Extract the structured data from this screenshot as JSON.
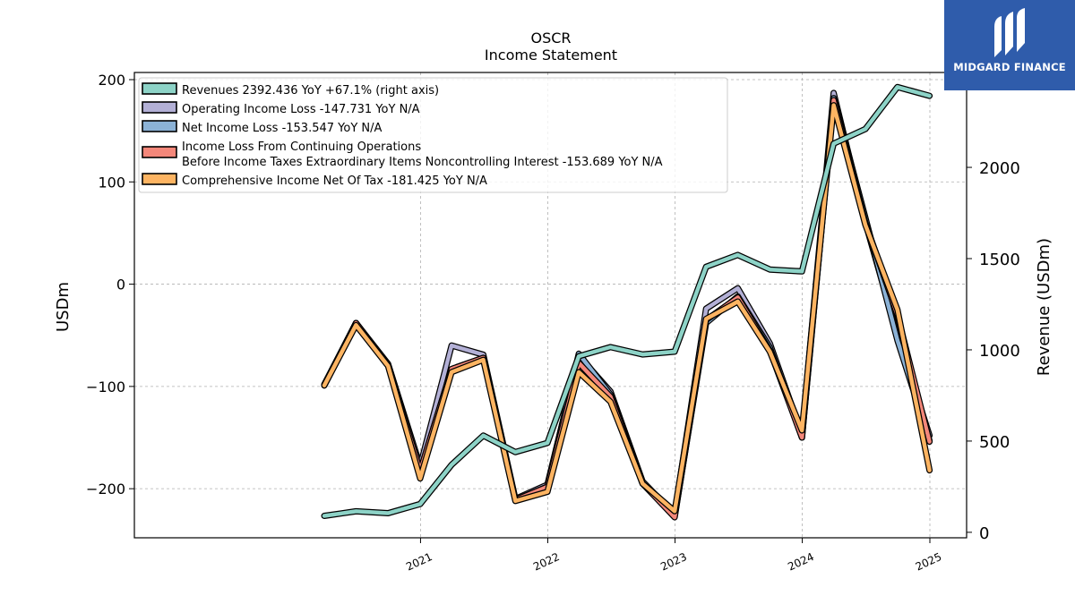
{
  "branding": {
    "name": "MIDGARD FINANCE",
    "logo_icon": "midgard-m-logo-icon",
    "background": "#2f5cab"
  },
  "chart_data": {
    "type": "line",
    "title": "OSCR",
    "subtitle": "Income Statement",
    "ylabel": "USDm",
    "y2label": "Revenue (USDm)",
    "ylim": [
      -248,
      207
    ],
    "y2lim": [
      -30,
      2520
    ],
    "yticks": [
      200,
      100,
      0,
      -100,
      -200
    ],
    "y2ticks": [
      2000,
      1500,
      1000,
      500,
      0
    ],
    "xticks": [
      "2021",
      "2022",
      "2023",
      "2024",
      "2025"
    ],
    "grid": true,
    "legend_placement": "top-left",
    "x": [
      "2020-03-31",
      "2020-06-30",
      "2020-09-30",
      "2020-12-31",
      "2021-03-31",
      "2021-06-30",
      "2021-09-30",
      "2021-12-31",
      "2022-03-31",
      "2022-06-30",
      "2022-09-30",
      "2022-12-31",
      "2023-03-31",
      "2023-06-30",
      "2023-09-30",
      "2023-12-31",
      "2024-03-31",
      "2024-06-30",
      "2024-09-30",
      "2024-12-31"
    ],
    "series": [
      {
        "name": "Operating Income Loss",
        "legend": "Operating Income Loss  -147.731 YoY N/A",
        "color": "#b3b0d6",
        "axis": "left",
        "values": [
          -98,
          -38,
          -78,
          -178,
          -60,
          -69,
          -210,
          -196,
          -70,
          -105,
          -193,
          -225,
          -24,
          -4,
          -58,
          -147,
          187,
          60,
          -50,
          -148
        ]
      },
      {
        "name": "Net Income Loss",
        "legend": "Net Income Loss  -153.547 YoY N/A",
        "color": "#8bb2d6",
        "axis": "left",
        "values": [
          -99,
          -38,
          -79,
          -183,
          -83,
          -72,
          -211,
          -198,
          -68,
          -108,
          -195,
          -227,
          -38,
          -12,
          -62,
          -150,
          182,
          65,
          -55,
          -153
        ]
      },
      {
        "name": "Income Loss From Continuing Operations Before Income Taxes Extraordinary Items Noncontrolling Interest",
        "legend_line1": "Income Loss From Continuing Operations",
        "legend_line2": "Before Income Taxes Extraordinary Items Noncontrolling Interest  -153.689 YoY N/A",
        "color": "#f4877a",
        "axis": "left",
        "values": [
          -99,
          -38,
          -79,
          -183,
          -83,
          -72,
          -211,
          -198,
          -77,
          -110,
          -195,
          -228,
          -35,
          -13,
          -65,
          -150,
          180,
          60,
          -30,
          -154
        ]
      },
      {
        "name": "Comprehensive Income Net Of Tax",
        "legend": "Comprehensive Income Net Of Tax  -181.425 YoY N/A",
        "color": "#fdb462",
        "axis": "left",
        "values": [
          -99,
          -40,
          -80,
          -190,
          -86,
          -74,
          -212,
          -203,
          -86,
          -115,
          -195,
          -222,
          -34,
          -17,
          -66,
          -143,
          175,
          58,
          -25,
          -182
        ]
      },
      {
        "name": "Revenues",
        "legend": "Revenues  2392.436 YoY +67.1% (right axis)",
        "color": "#8dd3c7",
        "axis": "right",
        "values": [
          90,
          115,
          105,
          155,
          370,
          530,
          440,
          490,
          965,
          1015,
          975,
          990,
          1455,
          1520,
          1440,
          1430,
          2130,
          2210,
          2440,
          2392
        ]
      }
    ]
  }
}
